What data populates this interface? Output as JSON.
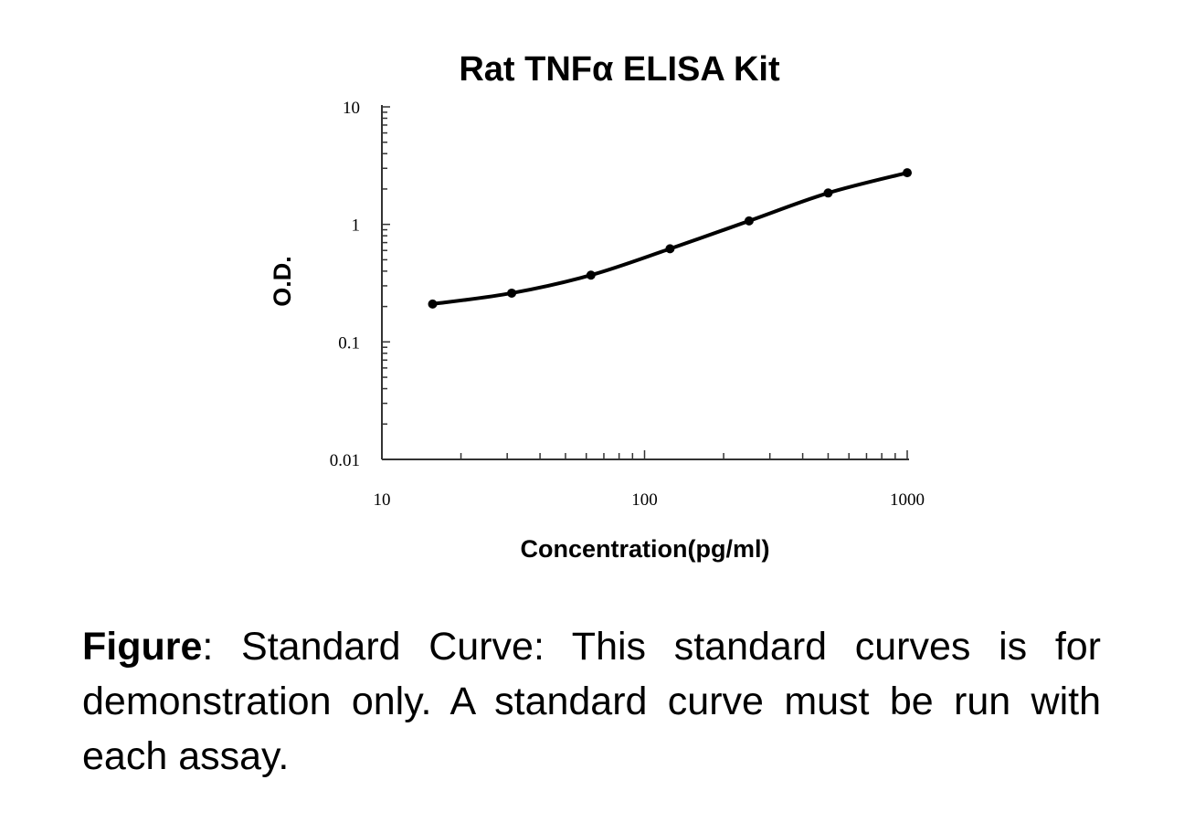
{
  "chart_data": {
    "type": "line",
    "title": "Rat TNFα ELISA Kit",
    "xlabel": "Concentration(pg/ml)",
    "ylabel": "O.D.",
    "x_scale": "log",
    "y_scale": "log",
    "xlim": [
      10,
      1000
    ],
    "ylim": [
      0.01,
      10
    ],
    "x_ticks": [
      "10",
      "100",
      "1000"
    ],
    "y_ticks": [
      "10",
      "1",
      "0.1",
      "0.01"
    ],
    "grid": false,
    "series": [
      {
        "x": [
          15.6,
          31.2,
          62.5,
          125,
          250,
          500,
          1000
        ],
        "y": [
          0.21,
          0.26,
          0.37,
          0.62,
          1.07,
          1.85,
          2.75
        ]
      }
    ],
    "colors": {
      "line": "#000000",
      "axis": "#333333"
    }
  },
  "caption": {
    "lead": "Figure",
    "text": ": Standard Curve: This standard curves is for demonstration only. A standard curve must be run with each assay."
  }
}
